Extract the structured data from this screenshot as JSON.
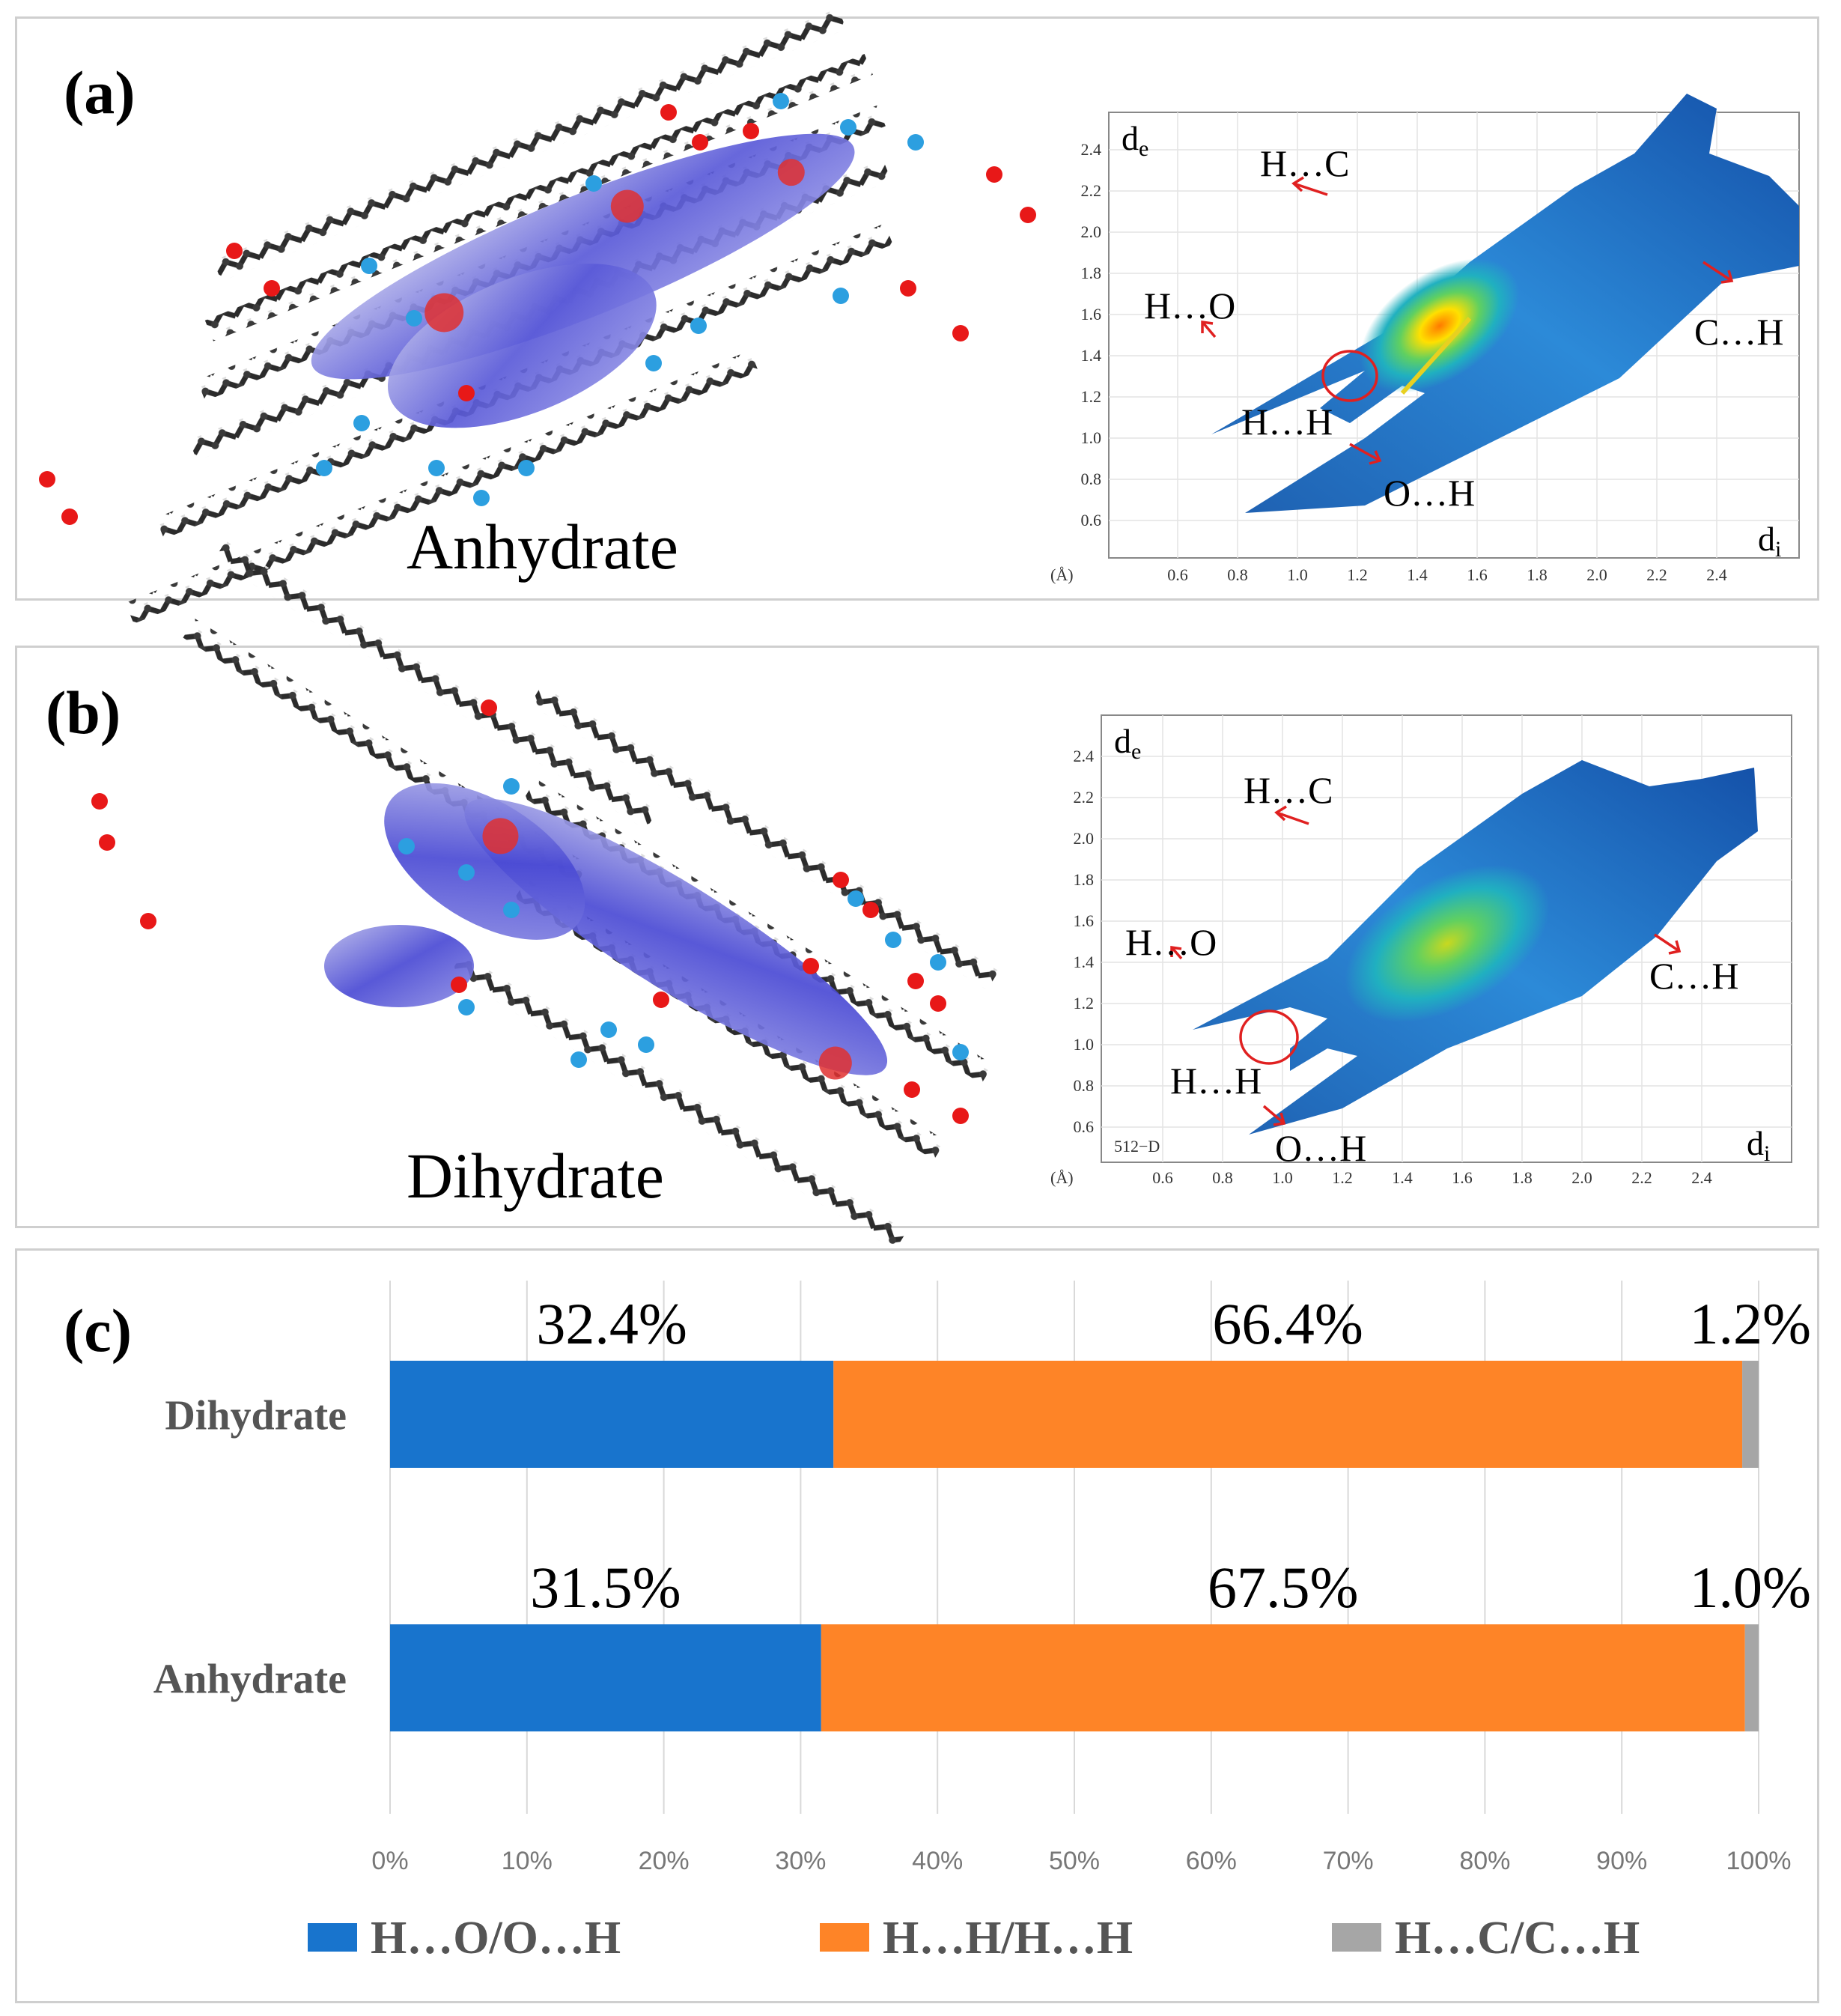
{
  "panels": {
    "a": {
      "letter": "(a)",
      "molecule_label": "Anhydrate",
      "fingerprint": {
        "y_axis_label": "d",
        "y_axis_sub": "e",
        "x_axis_label": "d",
        "x_axis_sub": "i",
        "unit": "(Å)",
        "x_ticks": [
          "0.6",
          "0.8",
          "1.0",
          "1.2",
          "1.4",
          "1.6",
          "1.8",
          "2.0",
          "2.2",
          "2.4"
        ],
        "y_ticks": [
          "0.6",
          "0.8",
          "1.0",
          "1.2",
          "1.4",
          "1.6",
          "1.8",
          "2.0",
          "2.2",
          "2.4"
        ],
        "annotations": [
          "H…C",
          "H…O",
          "C…H",
          "H…H",
          "O…H"
        ],
        "corner_label": ""
      }
    },
    "b": {
      "letter": "(b)",
      "molecule_label": "Dihydrate",
      "fingerprint": {
        "y_axis_label": "d",
        "y_axis_sub": "e",
        "x_axis_label": "d",
        "x_axis_sub": "i",
        "unit": "(Å)",
        "x_ticks": [
          "0.6",
          "0.8",
          "1.0",
          "1.2",
          "1.4",
          "1.6",
          "1.8",
          "2.0",
          "2.2",
          "2.4"
        ],
        "y_ticks": [
          "0.6",
          "0.8",
          "1.0",
          "1.2",
          "1.4",
          "1.6",
          "1.8",
          "2.0",
          "2.2",
          "2.4"
        ],
        "annotations": [
          "H…C",
          "H…O",
          "C…H",
          "H…H",
          "O…H"
        ],
        "corner_label": "512−D"
      }
    },
    "c": {
      "letter": "(c)"
    }
  },
  "chart_data": {
    "type": "bar",
    "orientation": "horizontal",
    "stacked": "100%",
    "categories": [
      "Dihydrate",
      "Anhydrate"
    ],
    "series": [
      {
        "name": "H…O/O…H",
        "values": [
          32.4,
          31.5
        ],
        "labels": [
          "32.4%",
          "31.5%"
        ],
        "color": "#1874cd"
      },
      {
        "name": "H…H/H…H",
        "values": [
          66.4,
          67.5
        ],
        "labels": [
          "66.4%",
          "67.5%"
        ],
        "color": "#fe8427"
      },
      {
        "name": "H…C/C…H",
        "values": [
          1.2,
          1.0
        ],
        "labels": [
          "1.2%",
          "1.0%"
        ],
        "color": "#a6a6a6"
      }
    ],
    "x_ticks": [
      "0%",
      "10%",
      "20%",
      "30%",
      "40%",
      "50%",
      "60%",
      "70%",
      "80%",
      "90%",
      "100%"
    ],
    "xlim": [
      0,
      100
    ],
    "grid": true,
    "legend_position": "bottom"
  }
}
